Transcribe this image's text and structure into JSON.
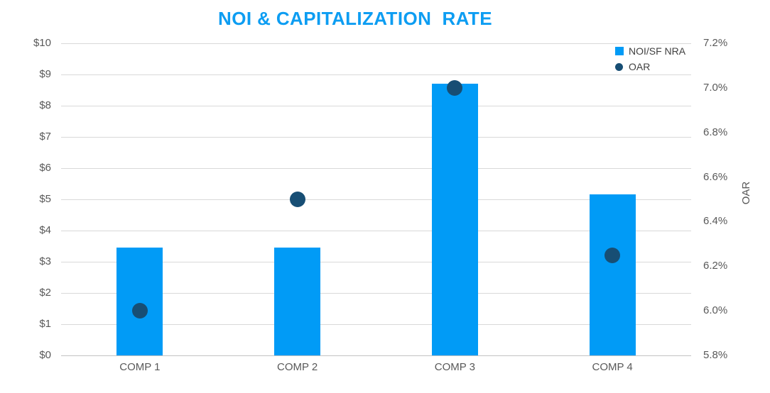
{
  "chart_data": {
    "type": "combo",
    "title": "NOI & CAPITALIZATION  RATE",
    "categories": [
      "COMP 1",
      "COMP 2",
      "COMP 3",
      "COMP 4"
    ],
    "series": [
      {
        "name": "NOI/SF NRA",
        "type": "bar",
        "axis": "left",
        "values": [
          3.45,
          3.45,
          8.7,
          5.15
        ]
      },
      {
        "name": "OAR",
        "type": "scatter",
        "axis": "right",
        "values": [
          6.0,
          6.5,
          7.0,
          6.25
        ]
      }
    ],
    "left_axis": {
      "min": 0,
      "max": 10,
      "ticks": [
        "$10",
        "$9",
        "$8",
        "$7",
        "$6",
        "$5",
        "$4",
        "$3",
        "$2",
        "$1",
        "$0"
      ]
    },
    "right_axis": {
      "min": 5.8,
      "max": 7.2,
      "title": "OAR",
      "ticks": [
        "7.2%",
        "7.0%",
        "6.8%",
        "6.6%",
        "6.4%",
        "6.2%",
        "6.0%",
        "5.8%"
      ]
    },
    "legend": {
      "position": "top-right"
    },
    "grid": true
  },
  "colors": {
    "bar": "#019bf6",
    "marker": "#174e74",
    "title": "#0d9df2",
    "axis_text": "#595959",
    "legend_text": "#404040",
    "gridline": "#d9d9d9",
    "axis_line": "#c3c3c3",
    "background": "#ffffff"
  }
}
